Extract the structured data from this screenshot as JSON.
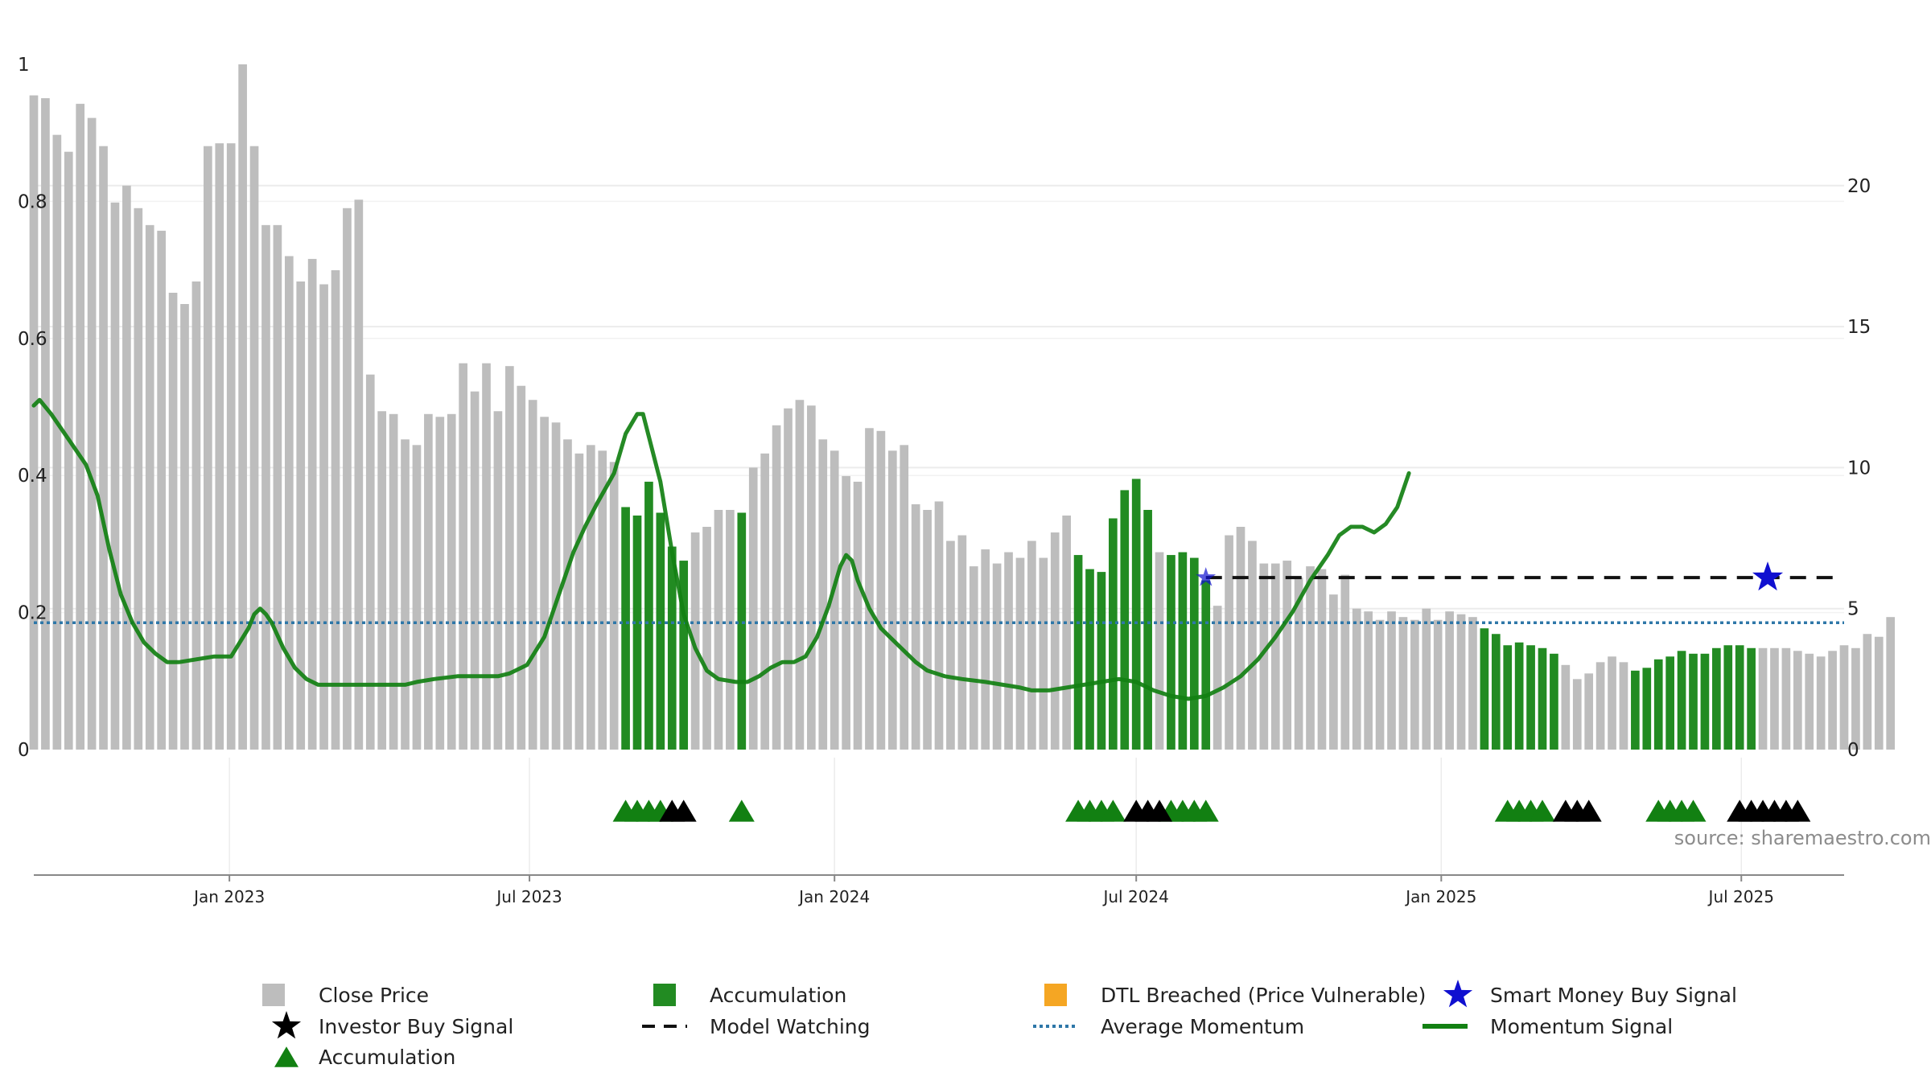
{
  "chart_data": {
    "type": "bar",
    "source_label": "source: sharemaestro.com",
    "left_axis": {
      "ylim": [
        0,
        1
      ],
      "ticks": [
        "0",
        "0.2",
        "0.4",
        "0.6",
        "0.8",
        "1"
      ],
      "tick_values": [
        0,
        0.2,
        0.4,
        0.6,
        0.8,
        1
      ]
    },
    "right_axis": {
      "ylim": [
        0,
        24.3
      ],
      "ticks": [
        "0",
        "5",
        "10",
        "15",
        "20"
      ],
      "tick_values": [
        0,
        5,
        10,
        15,
        20
      ]
    },
    "x_axis": {
      "start": "2022-09-05",
      "end": "2025-09-01",
      "ticks": [
        "Jan 2023",
        "Jul 2023",
        "Jan 2024",
        "Jul 2024",
        "Jan 2025",
        "Jul 2025"
      ],
      "tick_dates": [
        "2023-01-01",
        "2023-07-01",
        "2024-01-01",
        "2024-07-01",
        "2025-01-01",
        "2025-07-01"
      ]
    },
    "grid": "horizontal",
    "legend_position": "bottom",
    "colors": {
      "close_price": "#bdbdbd",
      "accumulation": "#228b22",
      "dtl_breached": "#f5a623",
      "smart_money": "#1010d0",
      "investor_signal": "#000000",
      "model_watching": "#111111",
      "average_momentum": "#2e77a8",
      "momentum": "#128012"
    },
    "series": [
      {
        "name": "Close Price",
        "type": "bar",
        "start_date": "2022-09-05",
        "interval_days": 7,
        "values": [
          23.2,
          23.1,
          21.8,
          21.2,
          22.9,
          22.4,
          21.4,
          19.4,
          20.0,
          19.2,
          18.6,
          18.4,
          16.2,
          15.8,
          16.6,
          21.4,
          21.5,
          21.5,
          24.3,
          21.4,
          18.6,
          18.6,
          17.5,
          16.6,
          17.4,
          16.5,
          17.0,
          19.2,
          19.5,
          13.3,
          12.0,
          11.9,
          11.0,
          10.8,
          11.9,
          11.8,
          11.9,
          13.7,
          12.7,
          13.7,
          12.0,
          13.6,
          12.9,
          12.4,
          11.8,
          11.6,
          11.0,
          10.5,
          10.8,
          10.6,
          10.2,
          8.6,
          8.3,
          9.5,
          8.4,
          7.2,
          6.7,
          7.7,
          7.9,
          8.5,
          8.5,
          8.4,
          10.0,
          10.5,
          11.5,
          12.1,
          12.4,
          12.2,
          11.0,
          10.6,
          9.7,
          9.5,
          11.4,
          11.3,
          10.6,
          10.8,
          8.7,
          8.5,
          8.8,
          7.4,
          7.6,
          6.5,
          7.1,
          6.6,
          7.0,
          6.8,
          7.4,
          6.8,
          7.7,
          8.3,
          6.9,
          6.4,
          6.3,
          8.2,
          9.2,
          9.6,
          8.5,
          7.0,
          6.9,
          7.0,
          6.8,
          6.0,
          5.1,
          7.6,
          7.9,
          7.4,
          6.6,
          6.6,
          6.7,
          6.1,
          6.5,
          6.4,
          5.5,
          6.2,
          5.0,
          4.9,
          4.6,
          4.9,
          4.7,
          4.6,
          5.0,
          4.6,
          4.9,
          4.8,
          4.7,
          4.3,
          4.1,
          3.7,
          3.8,
          3.7,
          3.6,
          3.4,
          3.0,
          2.5,
          2.7,
          3.1,
          3.3,
          3.1,
          2.8,
          2.9,
          3.2,
          3.3,
          3.5,
          3.4,
          3.4,
          3.6,
          3.7,
          3.7,
          3.6,
          3.6,
          3.6,
          3.6,
          3.5,
          3.4,
          3.3,
          3.5,
          3.7,
          3.6,
          4.1,
          4.0,
          4.7
        ]
      },
      {
        "name": "Accumulation",
        "type": "bar",
        "indices": [
          51,
          52,
          53,
          54,
          55,
          56,
          61,
          90,
          91,
          92,
          93,
          94,
          95,
          96,
          98,
          99,
          100,
          101,
          125,
          126,
          127,
          128,
          129,
          130,
          131,
          138,
          139,
          140,
          141,
          142,
          143,
          144,
          145,
          146,
          147,
          148
        ]
      },
      {
        "name": "DTL Breached (Price Vulnerable)",
        "type": "bar",
        "indices": []
      },
      {
        "name": "Smart Money Buy Signal",
        "type": "marker",
        "points": [
          {
            "index": 101,
            "value": 6.1
          },
          {
            "index": 149,
            "value": 6.1
          }
        ]
      },
      {
        "name": "Investor Buy Signal",
        "type": "marker",
        "indices": [
          55,
          56,
          95,
          96,
          97,
          132,
          133,
          134,
          147,
          148,
          149,
          150,
          151,
          152
        ]
      },
      {
        "name": "Accumulation",
        "type": "marker",
        "indices": [
          51,
          52,
          53,
          54,
          61,
          90,
          91,
          92,
          93,
          98,
          99,
          100,
          101,
          127,
          128,
          129,
          130,
          140,
          141,
          142,
          143
        ]
      },
      {
        "name": "Model Watching",
        "type": "line",
        "from_index": 101,
        "to_index": 157,
        "value": 6.1
      },
      {
        "name": "Average Momentum",
        "type": "line",
        "value": 4.5
      },
      {
        "name": "Momentum Signal",
        "type": "line",
        "points": [
          [
            0,
            12.2
          ],
          [
            1,
            12.4
          ],
          [
            3,
            11.9
          ],
          [
            6,
            11.0
          ],
          [
            9,
            10.1
          ],
          [
            11,
            9.0
          ],
          [
            13,
            7.1
          ],
          [
            15,
            5.5
          ],
          [
            17,
            4.5
          ],
          [
            19,
            3.8
          ],
          [
            21,
            3.4
          ],
          [
            23,
            3.1
          ],
          [
            25,
            3.1
          ],
          [
            28,
            3.2
          ],
          [
            31,
            3.3
          ],
          [
            34,
            3.3
          ],
          [
            37,
            4.3
          ],
          [
            38,
            4.8
          ],
          [
            39,
            5.0
          ],
          [
            40,
            4.8
          ],
          [
            41,
            4.5
          ],
          [
            43,
            3.6
          ],
          [
            45,
            2.9
          ],
          [
            47,
            2.5
          ],
          [
            49,
            2.3
          ],
          [
            52,
            2.3
          ],
          [
            56,
            2.3
          ],
          [
            60,
            2.3
          ],
          [
            64,
            2.3
          ],
          [
            66,
            2.4
          ],
          [
            69,
            2.5
          ],
          [
            73,
            2.6
          ],
          [
            77,
            2.6
          ],
          [
            80,
            2.6
          ],
          [
            82,
            2.7
          ],
          [
            85,
            3.0
          ],
          [
            88,
            4.0
          ],
          [
            91,
            5.8
          ],
          [
            93,
            7.0
          ],
          [
            95,
            7.9
          ],
          [
            97,
            8.7
          ],
          [
            100,
            9.8
          ],
          [
            102,
            11.2
          ],
          [
            104,
            11.9
          ],
          [
            105,
            11.9
          ],
          [
            106,
            11.1
          ],
          [
            108,
            9.5
          ],
          [
            110,
            7.0
          ],
          [
            112,
            4.8
          ],
          [
            114,
            3.6
          ],
          [
            116,
            2.8
          ],
          [
            118,
            2.5
          ],
          [
            121,
            2.4
          ],
          [
            123,
            2.4
          ],
          [
            125,
            2.6
          ],
          [
            127,
            2.9
          ],
          [
            129,
            3.1
          ],
          [
            131,
            3.1
          ],
          [
            133,
            3.3
          ],
          [
            135,
            4.0
          ],
          [
            137,
            5.1
          ],
          [
            139,
            6.5
          ],
          [
            140,
            6.9
          ],
          [
            141,
            6.7
          ],
          [
            142,
            6.0
          ],
          [
            144,
            5.0
          ],
          [
            146,
            4.3
          ],
          [
            148,
            3.9
          ],
          [
            150,
            3.5
          ],
          [
            152,
            3.1
          ],
          [
            154,
            2.8
          ],
          [
            157,
            2.6
          ],
          [
            160,
            2.5
          ],
          [
            164,
            2.4
          ],
          [
            167,
            2.3
          ],
          [
            170,
            2.2
          ],
          [
            172,
            2.1
          ],
          [
            175,
            2.1
          ],
          [
            178,
            2.2
          ],
          [
            181,
            2.3
          ],
          [
            184,
            2.4
          ],
          [
            187,
            2.5
          ],
          [
            190,
            2.4
          ],
          [
            193,
            2.1
          ],
          [
            196,
            1.9
          ],
          [
            199,
            1.8
          ],
          [
            202,
            1.9
          ],
          [
            205,
            2.2
          ],
          [
            208,
            2.6
          ],
          [
            211,
            3.2
          ],
          [
            214,
            4.0
          ],
          [
            217,
            4.9
          ],
          [
            220,
            6.0
          ],
          [
            223,
            6.9
          ],
          [
            225,
            7.6
          ],
          [
            227,
            7.9
          ],
          [
            229,
            7.9
          ],
          [
            231,
            7.7
          ],
          [
            233,
            8.0
          ],
          [
            235,
            8.6
          ],
          [
            237,
            9.8
          ]
        ]
      }
    ],
    "legend": [
      {
        "label": "Close Price",
        "symbol": "square",
        "color": "#bdbdbd"
      },
      {
        "label": "Accumulation",
        "symbol": "square",
        "color": "#228b22"
      },
      {
        "label": "DTL Breached (Price Vulnerable)",
        "symbol": "square",
        "color": "#f5a623"
      },
      {
        "label": "Smart Money Buy Signal",
        "symbol": "star",
        "color": "#1010d0"
      },
      {
        "label": "Investor Buy Signal",
        "symbol": "star",
        "color": "#000000"
      },
      {
        "label": "Model Watching",
        "symbol": "dash",
        "color": "#111111"
      },
      {
        "label": "Average Momentum",
        "symbol": "dot",
        "color": "#2e77a8"
      },
      {
        "label": "Momentum Signal",
        "symbol": "line",
        "color": "#128012"
      },
      {
        "label": "Accumulation",
        "symbol": "triangle",
        "color": "#128012"
      }
    ]
  }
}
